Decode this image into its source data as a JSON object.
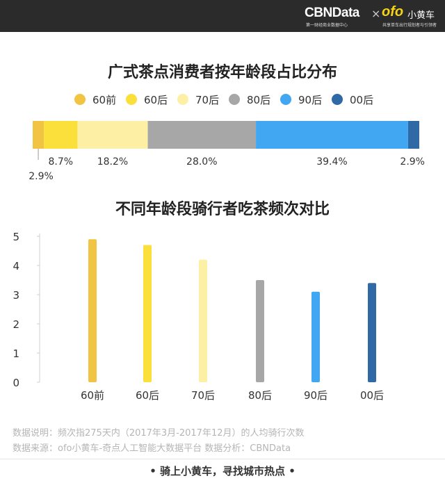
{
  "header": {
    "cbn_logo": "CBNData",
    "cbn_subtitle": "第一财经商业数据中心",
    "separator": "×",
    "ofo_logo": "ofo",
    "ofo_name": "小黄车",
    "ofo_subtitle": "共享单车出行规划者与引领者"
  },
  "colors": {
    "60前": "#f2c443",
    "60后": "#fbdf3a",
    "70后": "#fdf0a5",
    "80后": "#a7a7a7",
    "90后": "#42a7f3",
    "00后": "#2f6aa6"
  },
  "chart_data": [
    {
      "type": "bar",
      "orientation": "horizontal-stacked",
      "title": "广式茶点消费者按年龄段占比分布",
      "legend_position": "top",
      "series": [
        {
          "name": "60前",
          "value": 2.9,
          "label": "2.9%"
        },
        {
          "name": "60后",
          "value": 8.7,
          "label": "8.7%"
        },
        {
          "name": "70后",
          "value": 18.2,
          "label": "18.2%"
        },
        {
          "name": "80后",
          "value": 28.0,
          "label": "28.0%"
        },
        {
          "name": "90后",
          "value": 39.4,
          "label": "39.4%"
        },
        {
          "name": "00后",
          "value": 2.9,
          "label": "2.9%"
        }
      ]
    },
    {
      "type": "bar",
      "title": "不同年龄段骑行者吃茶频次对比",
      "categories": [
        "60前",
        "60后",
        "70后",
        "80后",
        "90后",
        "00后"
      ],
      "values": [
        4.9,
        4.7,
        4.2,
        3.5,
        3.1,
        3.4
      ],
      "ylim": [
        0,
        5
      ],
      "yticks": [
        "0",
        "1",
        "2",
        "3",
        "4",
        "5"
      ],
      "grid": false
    }
  ],
  "footer": {
    "note": "数据说明：频次指275天内（2017年3月-2017年12月）的人均骑行次数",
    "source": "数据来源：ofo小黄车-奇点人工智能大数据平台    数据分析：CBNData",
    "slogan": "• 骑上小黄车，寻找城市热点 •"
  }
}
